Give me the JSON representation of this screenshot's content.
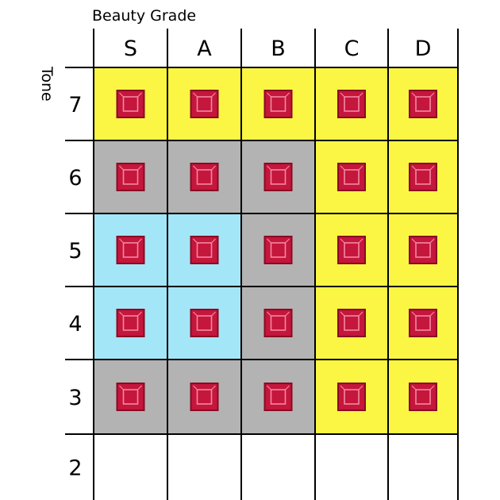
{
  "chart_data": {
    "type": "heatmap",
    "title": "Beauty Grade",
    "xlabel": "Beauty Grade",
    "ylabel": "Tone",
    "x_categories": [
      "S",
      "A",
      "B",
      "C",
      "D"
    ],
    "y_categories": [
      "7",
      "6",
      "5",
      "4",
      "3",
      "2"
    ],
    "cell_zone": [
      [
        "yellow",
        "yellow",
        "yellow",
        "yellow",
        "yellow"
      ],
      [
        "gray",
        "gray",
        "gray",
        "yellow",
        "yellow"
      ],
      [
        "cyan",
        "cyan",
        "gray",
        "yellow",
        "yellow"
      ],
      [
        "cyan",
        "cyan",
        "gray",
        "yellow",
        "yellow"
      ],
      [
        "gray",
        "gray",
        "gray",
        "yellow",
        "yellow"
      ],
      [
        "none",
        "none",
        "none",
        "none",
        "none"
      ]
    ],
    "gem_present": [
      [
        true,
        true,
        true,
        true,
        true
      ],
      [
        true,
        true,
        true,
        true,
        true
      ],
      [
        true,
        true,
        true,
        true,
        true
      ],
      [
        true,
        true,
        true,
        true,
        true
      ],
      [
        true,
        true,
        true,
        true,
        true
      ],
      [
        false,
        false,
        false,
        false,
        false
      ]
    ],
    "zone_colors": {
      "yellow": "#fbf644",
      "gray": "#b3b3b3",
      "cyan": "#a3e6f7",
      "none": "#ffffff"
    },
    "gem_colors": {
      "fill": "#c5163c",
      "dark": "#8a0a23",
      "light": "#f08aa3"
    },
    "grid": true
  }
}
